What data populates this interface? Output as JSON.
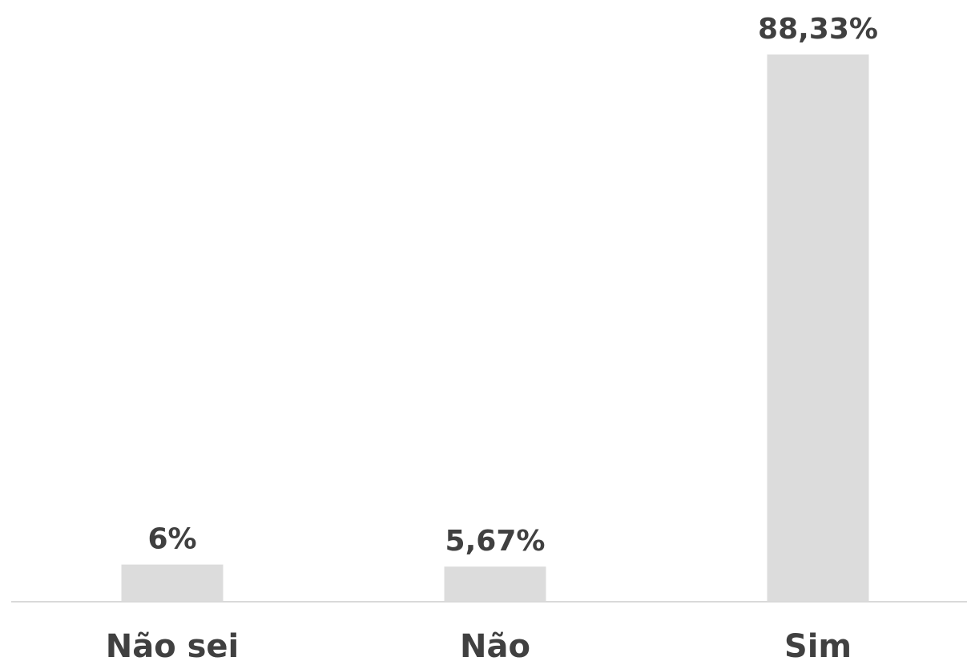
{
  "chart_data": {
    "type": "bar",
    "categories": [
      "Não sei",
      "Não",
      "Sim"
    ],
    "values": [
      6,
      5.67,
      88.33
    ],
    "data_labels": [
      "6%",
      "5,67%",
      "88,33%"
    ],
    "title": "",
    "xlabel": "",
    "ylabel": "",
    "ylim": [
      0,
      88.33
    ],
    "grid": false,
    "legend": "none",
    "colors": {
      "bar": "#dcdcdc",
      "text": "#404040",
      "axis": "#d9d9d9"
    }
  }
}
